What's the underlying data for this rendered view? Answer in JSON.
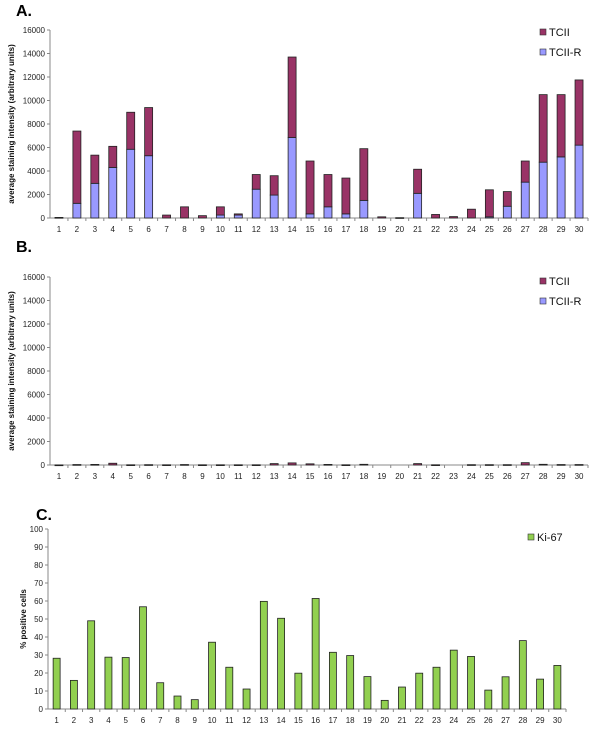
{
  "chart_data": [
    {
      "panel": "A.",
      "type": "bar",
      "stacked": true,
      "ylabel": "average staining intensity (arbitrary units)",
      "ylim": [
        0,
        16000
      ],
      "yticks": [
        0,
        2000,
        4000,
        6000,
        8000,
        10000,
        12000,
        14000,
        16000
      ],
      "categories": [
        "1",
        "2",
        "3",
        "4",
        "5",
        "6",
        "7",
        "8",
        "9",
        "10",
        "11",
        "12",
        "13",
        "14",
        "15",
        "16",
        "17",
        "18",
        "19",
        "20",
        "21",
        "22",
        "23",
        "24",
        "25",
        "26",
        "27",
        "28",
        "29",
        "30"
      ],
      "legend_position": "top-right",
      "series": [
        {
          "name": "TCII-R",
          "color": "#9999ff",
          "values": [
            0,
            1250,
            2950,
            4300,
            5850,
            5300,
            0,
            0,
            0,
            250,
            250,
            2450,
            1950,
            6850,
            350,
            950,
            350,
            1500,
            0,
            0,
            2100,
            0,
            0,
            0,
            100,
            1000,
            3050,
            4750,
            5200,
            6200
          ]
        },
        {
          "name": "TCII",
          "color": "#993366",
          "values": [
            50,
            6150,
            2400,
            1800,
            3150,
            4100,
            250,
            950,
            200,
            700,
            100,
            1250,
            1650,
            6850,
            4500,
            2750,
            3050,
            4400,
            100,
            30,
            2050,
            300,
            120,
            750,
            2300,
            1250,
            1800,
            5750,
            5300,
            5550
          ]
        }
      ]
    },
    {
      "panel": "B.",
      "type": "bar",
      "stacked": true,
      "ylabel": "average staining intensity (arbitrary units)",
      "ylim": [
        0,
        16000
      ],
      "yticks": [
        0,
        2000,
        4000,
        6000,
        8000,
        10000,
        12000,
        14000,
        16000
      ],
      "categories": [
        "1",
        "2",
        "3",
        "4",
        "5",
        "6",
        "7",
        "8",
        "9",
        "10",
        "11",
        "12",
        "13",
        "14",
        "15",
        "16",
        "17",
        "18",
        "19",
        "20",
        "21",
        "22",
        "23",
        "24",
        "25",
        "26",
        "27",
        "28",
        "29",
        "30"
      ],
      "legend_position": "top-right",
      "series": [
        {
          "name": "TCII-R",
          "color": "#9999ff",
          "values": [
            0,
            0,
            0,
            0,
            0,
            0,
            0,
            0,
            0,
            0,
            0,
            0,
            0,
            0,
            0,
            0,
            0,
            0,
            0,
            0,
            0,
            0,
            0,
            0,
            0,
            0,
            0,
            0,
            0,
            0
          ]
        },
        {
          "name": "TCII",
          "color": "#993366",
          "values": [
            10,
            40,
            50,
            150,
            20,
            30,
            20,
            40,
            20,
            20,
            20,
            20,
            120,
            180,
            100,
            50,
            20,
            60,
            0,
            0,
            120,
            20,
            0,
            30,
            30,
            30,
            200,
            60,
            40,
            40
          ]
        }
      ]
    },
    {
      "panel": "C.",
      "type": "bar",
      "ylabel": "% positive cells",
      "ylim": [
        0,
        100
      ],
      "yticks": [
        0,
        10,
        20,
        30,
        40,
        50,
        60,
        70,
        80,
        90,
        100
      ],
      "categories": [
        "1",
        "2",
        "3",
        "4",
        "5",
        "6",
        "7",
        "8",
        "9",
        "10",
        "11",
        "12",
        "13",
        "14",
        "15",
        "16",
        "17",
        "18",
        "19",
        "20",
        "21",
        "22",
        "23",
        "24",
        "25",
        "26",
        "27",
        "28",
        "29",
        "30"
      ],
      "legend_position": "top-right",
      "series": [
        {
          "name": "Ki-67",
          "color": "#92d050",
          "values": [
            28.2,
            15.9,
            49,
            28.8,
            28.6,
            56.8,
            14.6,
            7.2,
            5.2,
            37.1,
            23.2,
            11.1,
            59.8,
            50.4,
            19.9,
            61.4,
            31.5,
            29.7,
            18,
            4.8,
            12.2,
            19.9,
            23.2,
            32.7,
            29.2,
            10.5,
            17.9,
            38,
            16.6,
            24.2
          ]
        }
      ]
    }
  ]
}
